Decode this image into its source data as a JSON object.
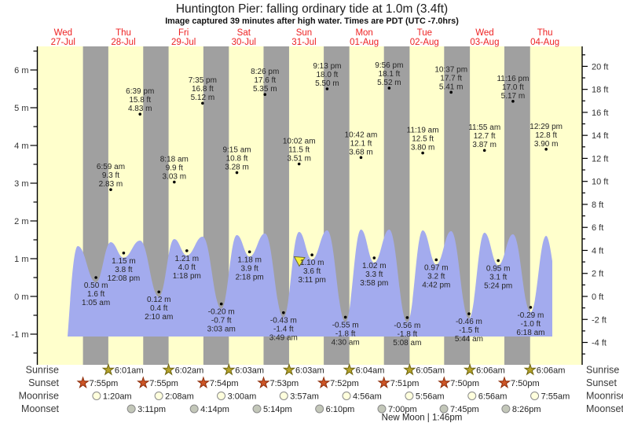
{
  "header": {
    "title": "Huntington Pier: falling ordinary tide at 1.0m (3.4ft)",
    "subtitle": "Image captured 39 minutes after high water. Times are PDT (UTC -7.0hrs)"
  },
  "chart_data": {
    "type": "area",
    "title": "Huntington Pier: falling ordinary tide at 1.0m (3.4ft)",
    "subtitle": "Image captured 39 minutes after high water. Times are PDT (UTC -7.0hrs)",
    "ylabel_left": "m",
    "ylabel_right": "ft",
    "ylim_m": [
      -1.8,
      6.6
    ],
    "grid": false,
    "days": [
      {
        "weekday": "Wed",
        "date": "27-Jul"
      },
      {
        "weekday": "Thu",
        "date": "28-Jul"
      },
      {
        "weekday": "Fri",
        "date": "29-Jul"
      },
      {
        "weekday": "Sat",
        "date": "30-Jul"
      },
      {
        "weekday": "Sun",
        "date": "31-Jul"
      },
      {
        "weekday": "Mon",
        "date": "01-Aug"
      },
      {
        "weekday": "Tue",
        "date": "02-Aug"
      },
      {
        "weekday": "Wed",
        "date": "03-Aug"
      },
      {
        "weekday": "Thu",
        "date": "04-Aug"
      }
    ],
    "y_axis_left": {
      "labels": [
        {
          "v": 6,
          "t": "6 m"
        },
        {
          "v": 5,
          "t": "5 m"
        },
        {
          "v": 4,
          "t": "4 m"
        },
        {
          "v": 3,
          "t": "3 m"
        },
        {
          "v": 2,
          "t": "2 m"
        },
        {
          "v": 1,
          "t": "1 m"
        },
        {
          "v": 0,
          "t": "0 m"
        },
        {
          "v": -1,
          "t": "-1 m"
        }
      ]
    },
    "y_axis_right": {
      "labels": [
        {
          "v": 20,
          "t": "20 ft"
        },
        {
          "v": 18,
          "t": "18 ft"
        },
        {
          "v": 16,
          "t": "16 ft"
        },
        {
          "v": 14,
          "t": "14 ft"
        },
        {
          "v": 12,
          "t": "12 ft"
        },
        {
          "v": 10,
          "t": "10 ft"
        },
        {
          "v": 8,
          "t": "8 ft"
        },
        {
          "v": 6,
          "t": "6 ft"
        },
        {
          "v": 4,
          "t": "4 ft"
        },
        {
          "v": 2,
          "t": "2 ft"
        },
        {
          "v": 0,
          "t": "0 ft"
        },
        {
          "v": -2,
          "t": "-2 ft"
        },
        {
          "v": -4,
          "t": "-4 ft"
        }
      ]
    },
    "high_tides": [
      {
        "day": 1,
        "time": "6:59 am",
        "ft": "9.3 ft",
        "m": "2.83 m",
        "value_m": 2.83
      },
      {
        "day": 1,
        "time": "6:39 pm",
        "ft": "15.8 ft",
        "m": "4.83 m",
        "value_m": 4.83
      },
      {
        "day": 2,
        "time": "8:18 am",
        "ft": "9.9 ft",
        "m": "3.03 m",
        "value_m": 3.03
      },
      {
        "day": 2,
        "time": "7:35 pm",
        "ft": "16.8 ft",
        "m": "5.12 m",
        "value_m": 5.12
      },
      {
        "day": 3,
        "time": "9:15 am",
        "ft": "10.8 ft",
        "m": "3.28 m",
        "value_m": 3.28
      },
      {
        "day": 3,
        "time": "8:26 pm",
        "ft": "17.6 ft",
        "m": "5.35 m",
        "value_m": 5.35
      },
      {
        "day": 4,
        "time": "10:02 am",
        "ft": "11.5 ft",
        "m": "3.51 m",
        "value_m": 3.51
      },
      {
        "day": 4,
        "time": "9:13 pm",
        "ft": "18.0 ft",
        "m": "5.50 m",
        "value_m": 5.5
      },
      {
        "day": 5,
        "time": "10:42 am",
        "ft": "12.1 ft",
        "m": "3.68 m",
        "value_m": 3.68
      },
      {
        "day": 5,
        "time": "9:56 pm",
        "ft": "18.1 ft",
        "m": "5.52 m",
        "value_m": 5.52
      },
      {
        "day": 6,
        "time": "11:19 am",
        "ft": "12.5 ft",
        "m": "3.80 m",
        "value_m": 3.8
      },
      {
        "day": 6,
        "time": "10:37 pm",
        "ft": "17.7 ft",
        "m": "5.41 m",
        "value_m": 5.41
      },
      {
        "day": 7,
        "time": "11:55 am",
        "ft": "12.7 ft",
        "m": "3.87 m",
        "value_m": 3.87
      },
      {
        "day": 7,
        "time": "11:16 pm",
        "ft": "17.0 ft",
        "m": "5.17 m",
        "value_m": 5.17
      },
      {
        "day": 8,
        "time": "12:29 pm",
        "ft": "12.8 ft",
        "m": "3.90 m",
        "value_m": 3.9
      }
    ],
    "low_tides": [
      {
        "day": 1,
        "m": "0.50 m",
        "ft": "1.6 ft",
        "time": "1:05 am",
        "value_m": 0.5
      },
      {
        "day": 1,
        "m": "1.15 m",
        "ft": "3.8 ft",
        "time": "12:08 pm",
        "value_m": 1.15
      },
      {
        "day": 2,
        "m": "0.12 m",
        "ft": "0.4 ft",
        "time": "2:10 am",
        "value_m": 0.12
      },
      {
        "day": 2,
        "m": "1.21 m",
        "ft": "4.0 ft",
        "time": "1:18 pm",
        "value_m": 1.21
      },
      {
        "day": 3,
        "m": "-0.20 m",
        "ft": "-0.7 ft",
        "time": "3:03 am",
        "value_m": -0.2
      },
      {
        "day": 3,
        "m": "1.18 m",
        "ft": "3.9 ft",
        "time": "2:18 pm",
        "value_m": 1.18
      },
      {
        "day": 4,
        "m": "-0.43 m",
        "ft": "-1.4 ft",
        "time": "3:49 am",
        "value_m": -0.43
      },
      {
        "day": 4,
        "m": "1.10 m",
        "ft": "3.6 ft",
        "time": "3:11 pm",
        "value_m": 1.1
      },
      {
        "day": 5,
        "m": "-0.55 m",
        "ft": "-1.8 ft",
        "time": "4:30 am",
        "value_m": -0.55
      },
      {
        "day": 5,
        "m": "1.02 m",
        "ft": "3.3 ft",
        "time": "3:58 pm",
        "value_m": 1.02
      },
      {
        "day": 6,
        "m": "-0.56 m",
        "ft": "-1.8 ft",
        "time": "5:08 am",
        "value_m": -0.56
      },
      {
        "day": 6,
        "m": "0.97 m",
        "ft": "3.2 ft",
        "time": "4:42 pm",
        "value_m": 0.97
      },
      {
        "day": 7,
        "m": "-0.46 m",
        "ft": "-1.5 ft",
        "time": "5:44 am",
        "value_m": -0.46
      },
      {
        "day": 7,
        "m": "0.95 m",
        "ft": "3.1 ft",
        "time": "5:24 pm",
        "value_m": 0.95
      },
      {
        "day": 8,
        "m": "-0.29 m",
        "ft": "-1.0 ft",
        "time": "6:18 am",
        "value_m": -0.29
      }
    ]
  },
  "astro": {
    "row_labels": [
      "Sunrise",
      "Sunset",
      "Moonrise",
      "Moonset"
    ],
    "icons": {
      "sunrise": "sunrise-star-icon",
      "sunset": "sunset-star-icon",
      "moonrise": "moonrise-circle-icon",
      "moonset": "moonset-circle-icon"
    },
    "sunrise": [
      {
        "day": 1,
        "time": "6:01am"
      },
      {
        "day": 2,
        "time": "6:02am"
      },
      {
        "day": 3,
        "time": "6:03am"
      },
      {
        "day": 4,
        "time": "6:03am"
      },
      {
        "day": 5,
        "time": "6:04am"
      },
      {
        "day": 6,
        "time": "6:05am"
      },
      {
        "day": 7,
        "time": "6:06am"
      },
      {
        "day": 8,
        "time": "6:06am"
      }
    ],
    "sunset": [
      {
        "day": 0,
        "time": "7:55pm"
      },
      {
        "day": 1,
        "time": "7:55pm"
      },
      {
        "day": 2,
        "time": "7:54pm"
      },
      {
        "day": 3,
        "time": "7:53pm"
      },
      {
        "day": 4,
        "time": "7:52pm"
      },
      {
        "day": 5,
        "time": "7:51pm"
      },
      {
        "day": 6,
        "time": "7:50pm"
      },
      {
        "day": 7,
        "time": "7:50pm"
      }
    ],
    "moonrise": [
      {
        "day": 1,
        "time": "1:20am"
      },
      {
        "day": 2,
        "time": "2:08am"
      },
      {
        "day": 3,
        "time": "3:00am"
      },
      {
        "day": 4,
        "time": "3:57am"
      },
      {
        "day": 5,
        "time": "4:56am"
      },
      {
        "day": 6,
        "time": "5:56am"
      },
      {
        "day": 7,
        "time": "6:56am"
      },
      {
        "day": 8,
        "time": "7:55am"
      }
    ],
    "moonset": [
      {
        "day": 1,
        "time": "3:11pm"
      },
      {
        "day": 2,
        "time": "4:14pm"
      },
      {
        "day": 3,
        "time": "5:14pm"
      },
      {
        "day": 4,
        "time": "6:10pm"
      },
      {
        "day": 5,
        "time": "7:00pm"
      },
      {
        "day": 6,
        "time": "7:45pm"
      },
      {
        "day": 7,
        "time": "8:26pm"
      }
    ],
    "new_moon": "New Moon | 1:46pm"
  },
  "colors": {
    "day_band": "#ffffcc",
    "night_band": "#a0a0a0",
    "tide_fill": "#a3abee",
    "day_label_red": "#ee2222",
    "axis_line": "#000000",
    "dot": "#000000",
    "sunrise_star_fill": "#b5a32a",
    "sunrise_star_stroke": "#6e650e",
    "sunset_star_fill": "#cc5526",
    "sunset_star_stroke": "#8e2f0c",
    "moonrise_fill": "#ffffdd",
    "moonrise_stroke": "#8a8a8a",
    "moonset_fill": "#c3c7b9",
    "moonset_stroke": "#8a8a8a",
    "now_marker_fill": "#f5ee3a",
    "now_marker_stroke": "#6b6b2a"
  }
}
